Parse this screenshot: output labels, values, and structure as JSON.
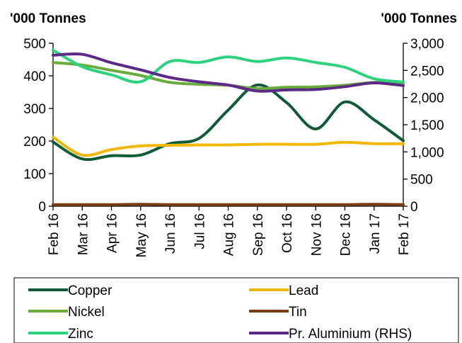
{
  "chart_data": {
    "type": "line",
    "title": "",
    "left_unit": "'000 Tonnes",
    "right_unit": "'000 Tonnes",
    "categories": [
      "Feb 16",
      "Mar 16",
      "Apr 16",
      "May 16",
      "Jun 16",
      "Jul 16",
      "Aug 16",
      "Sep 16",
      "Oct 16",
      "Nov 16",
      "Dec 16",
      "Jan 17",
      "Feb 17"
    ],
    "ylim_left": [
      0,
      500
    ],
    "yticks_left": [
      0,
      100,
      200,
      300,
      400,
      500
    ],
    "ylim_right": [
      0,
      3000
    ],
    "yticks_right": [
      0,
      500,
      1000,
      1500,
      2000,
      2500,
      3000
    ],
    "yticks_right_labels": [
      "0",
      "500",
      "1,000",
      "1,500",
      "2,000",
      "2,500",
      "3,000"
    ],
    "grid": false,
    "legend_position": "bottom",
    "series": [
      {
        "name": "Copper",
        "color": "#0e5c36",
        "axis": "left",
        "values": [
          197,
          145,
          155,
          157,
          192,
          208,
          295,
          372,
          318,
          237,
          320,
          265,
          201
        ]
      },
      {
        "name": "Lead",
        "color": "#f2b705",
        "axis": "left",
        "values": [
          212,
          157,
          174,
          185,
          187,
          188,
          188,
          190,
          190,
          190,
          196,
          192,
          192
        ]
      },
      {
        "name": "Nickel",
        "color": "#6aac3c",
        "axis": "left",
        "values": [
          441,
          433,
          417,
          401,
          380,
          374,
          371,
          361,
          365,
          366,
          371,
          380,
          377
        ]
      },
      {
        "name": "Tin",
        "color": "#7a3c12",
        "axis": "left",
        "values": [
          5,
          5,
          5,
          6,
          5,
          5,
          5,
          5,
          5,
          5,
          5,
          6,
          5
        ]
      },
      {
        "name": "Zinc",
        "color": "#2dd37c",
        "axis": "left",
        "values": [
          479,
          428,
          403,
          382,
          444,
          441,
          458,
          444,
          455,
          441,
          426,
          391,
          381
        ]
      },
      {
        "name": "Pr. Aluminium (RHS)",
        "color": "#5b2a86",
        "axis": "right",
        "values": [
          2780,
          2795,
          2640,
          2510,
          2370,
          2290,
          2230,
          2120,
          2140,
          2150,
          2200,
          2270,
          2220
        ]
      }
    ]
  }
}
